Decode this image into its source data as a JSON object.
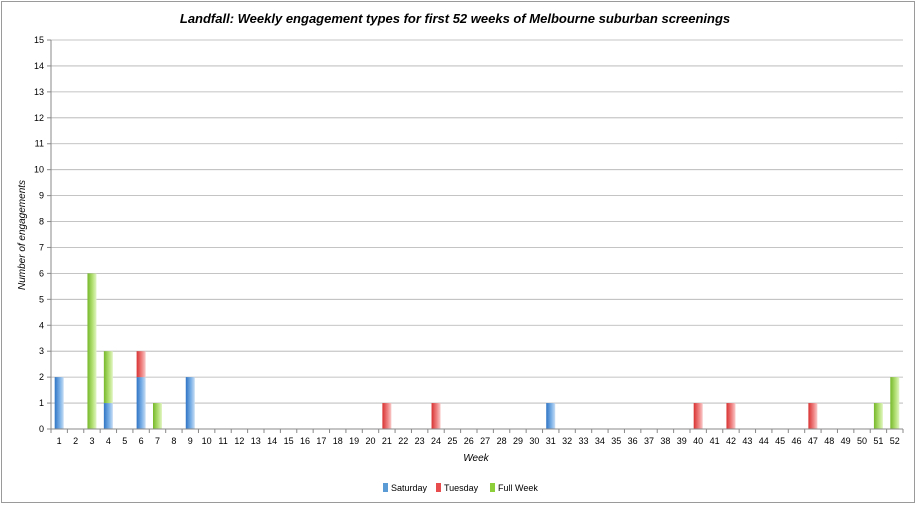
{
  "chart_data": {
    "type": "bar",
    "stacked": true,
    "title": "Landfall: Weekly engagement types for first 52 weeks of Melbourne suburban screenings",
    "xlabel": "Week",
    "ylabel": "Number of engagements",
    "ylim": [
      0,
      15
    ],
    "yticks": [
      0,
      1,
      2,
      3,
      4,
      5,
      6,
      7,
      8,
      9,
      10,
      11,
      12,
      13,
      14,
      15
    ],
    "grid": true,
    "legend_position": "bottom",
    "categories": [
      "1",
      "2",
      "3",
      "4",
      "5",
      "6",
      "7",
      "8",
      "9",
      "10",
      "11",
      "12",
      "13",
      "14",
      "15",
      "16",
      "17",
      "18",
      "19",
      "20",
      "21",
      "22",
      "23",
      "24",
      "25",
      "26",
      "27",
      "28",
      "29",
      "30",
      "31",
      "32",
      "33",
      "34",
      "35",
      "36",
      "37",
      "38",
      "39",
      "40",
      "41",
      "42",
      "43",
      "44",
      "45",
      "46",
      "47",
      "48",
      "49",
      "50",
      "51",
      "52"
    ],
    "series": [
      {
        "name": "Saturday",
        "color": "#5b9bd5",
        "values": [
          2,
          0,
          0,
          1,
          0,
          2,
          0,
          0,
          2,
          0,
          0,
          0,
          0,
          0,
          0,
          0,
          0,
          0,
          0,
          0,
          0,
          0,
          0,
          0,
          0,
          0,
          0,
          0,
          0,
          0,
          1,
          0,
          0,
          0,
          0,
          0,
          0,
          0,
          0,
          0,
          0,
          0,
          0,
          0,
          0,
          0,
          0,
          0,
          0,
          0,
          0,
          0
        ]
      },
      {
        "name": "Tuesday",
        "color": "#e84c4c",
        "values": [
          0,
          0,
          0,
          0,
          0,
          1,
          0,
          0,
          0,
          0,
          0,
          0,
          0,
          0,
          0,
          0,
          0,
          0,
          0,
          0,
          1,
          0,
          0,
          1,
          0,
          0,
          0,
          0,
          0,
          0,
          0,
          0,
          0,
          0,
          0,
          0,
          0,
          0,
          0,
          1,
          0,
          1,
          0,
          0,
          0,
          0,
          1,
          0,
          0,
          0,
          0,
          0
        ]
      },
      {
        "name": "Full Week",
        "color": "#8ccf3a",
        "values": [
          0,
          0,
          6,
          2,
          0,
          0,
          1,
          0,
          0,
          0,
          0,
          0,
          0,
          0,
          0,
          0,
          0,
          0,
          0,
          0,
          0,
          0,
          0,
          0,
          0,
          0,
          0,
          0,
          0,
          0,
          0,
          0,
          0,
          0,
          0,
          0,
          0,
          0,
          0,
          0,
          0,
          0,
          0,
          0,
          0,
          0,
          0,
          0,
          0,
          0,
          1,
          2
        ]
      }
    ]
  }
}
